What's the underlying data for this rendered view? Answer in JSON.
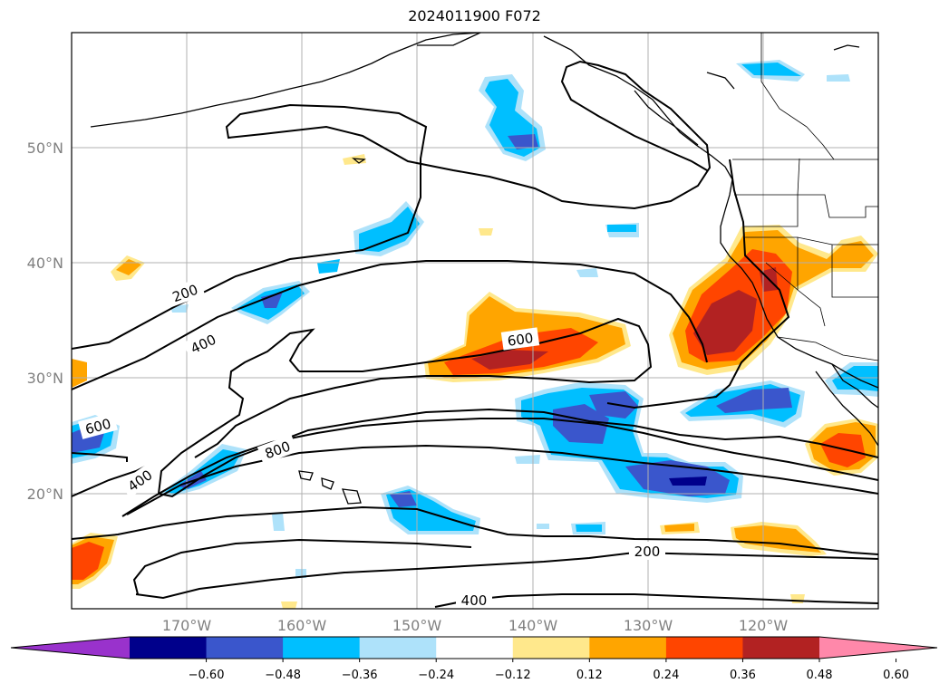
{
  "title": "2024011900 F072",
  "map": {
    "projection": "PlateCarree",
    "lon_range": [
      -180,
      -110
    ],
    "lat_range": [
      10,
      60
    ],
    "gridlines": true,
    "lat_labels": [
      "50°N",
      "40°N",
      "30°N",
      "20°N"
    ],
    "lon_labels": [
      "170°W",
      "160°W",
      "150°W",
      "140°W",
      "130°W",
      "120°W"
    ],
    "contour_labels": [
      "200",
      "400",
      "600",
      "600",
      "400",
      "800",
      "200",
      "400"
    ],
    "colors": {
      "contour": "#000000",
      "grid": "#b0b0b0",
      "coast": "#000000"
    }
  },
  "colorbar": {
    "tick_labels": [
      "−0.60",
      "−0.48",
      "−0.36",
      "−0.24",
      "−0.12",
      "0.12",
      "0.24",
      "0.36",
      "0.48",
      "0.60"
    ],
    "colors": [
      "#9932cc",
      "#00008b",
      "#3a56cc",
      "#00bfff",
      "#aee2fa",
      "#ffffff",
      "#ffe88c",
      "#ffa500",
      "#ff4500",
      "#b22222",
      "#ff88aa"
    ],
    "extend": "both"
  }
}
